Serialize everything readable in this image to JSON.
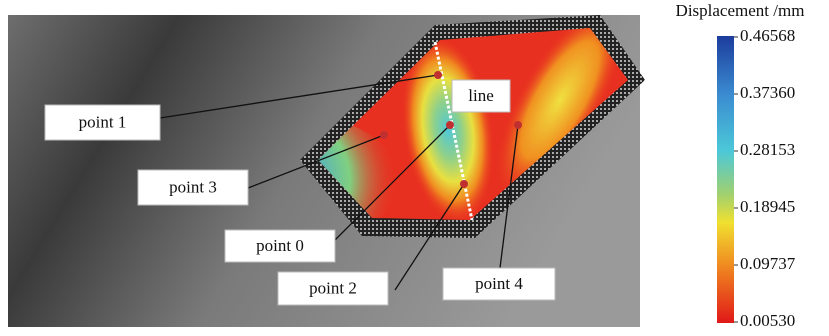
{
  "colorbar": {
    "title": "Displacement /mm",
    "lim": [
      0.0053,
      0.46568
    ],
    "ticks": [
      {
        "value": 0.0053,
        "label": "0.00530"
      },
      0.09737,
      0.18945,
      0.28153,
      {
        "value": 0.3736,
        "label": "0.37360"
      },
      0.46568
    ]
  },
  "labels": [
    "point 1",
    "line",
    "point 3",
    "point 0",
    "point 2",
    "point 4"
  ]
}
